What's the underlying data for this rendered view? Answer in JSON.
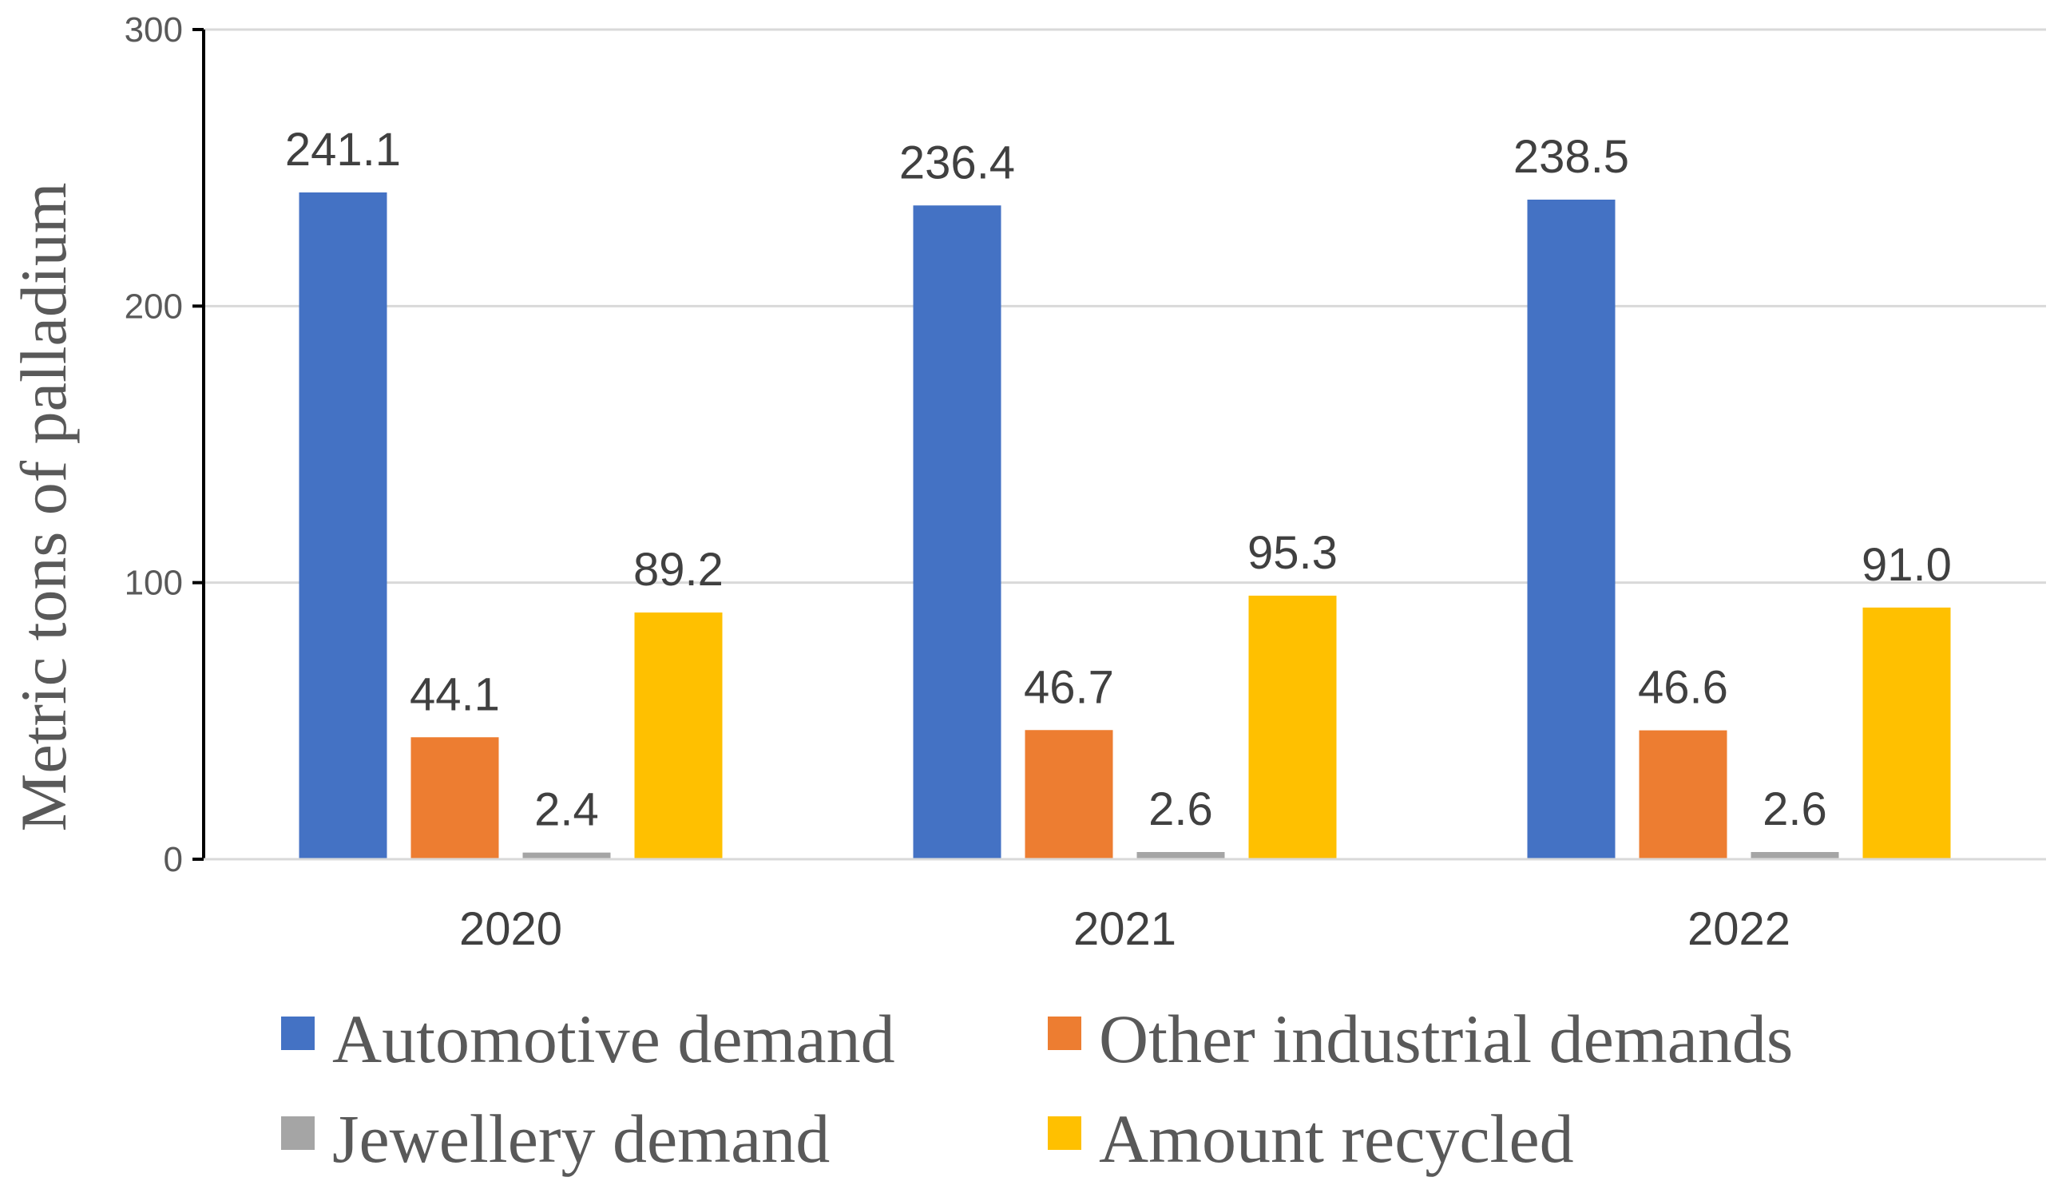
{
  "chart_data": {
    "type": "bar",
    "title": "",
    "xlabel": "",
    "ylabel": "Metric tons of palladium",
    "ylim": [
      0,
      300
    ],
    "yticks": [
      0,
      100,
      200,
      300
    ],
    "ytick_labels": [
      "0",
      "100",
      "200",
      "300"
    ],
    "categories": [
      "2020",
      "2021",
      "2022"
    ],
    "grid": true,
    "legend_position": "bottom",
    "series": [
      {
        "name": "Automotive demand",
        "color": "#4472C4",
        "values": [
          241.1,
          236.4,
          238.5
        ],
        "labels": [
          "241.1",
          "236.4",
          "238.5"
        ]
      },
      {
        "name": "Other industrial demands",
        "color": "#ED7D31",
        "values": [
          44.1,
          46.7,
          46.6
        ],
        "labels": [
          "44.1",
          "46.7",
          "46.6"
        ]
      },
      {
        "name": "Jewellery demand",
        "color": "#A5A5A5",
        "values": [
          2.4,
          2.6,
          2.6
        ],
        "labels": [
          "2.4",
          "2.6",
          "2.6"
        ]
      },
      {
        "name": "Amount recycled",
        "color": "#FFC000",
        "values": [
          89.2,
          95.3,
          91.0
        ],
        "labels": [
          "89.2",
          "95.3",
          "91.0"
        ]
      }
    ]
  }
}
